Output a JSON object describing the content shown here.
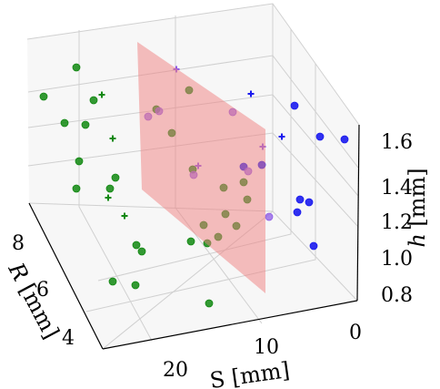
{
  "chart_data": {
    "type": "scatter3d",
    "axes": {
      "S": {
        "label": "S [mm]",
        "ticks": [
          "0",
          "10",
          "20"
        ]
      },
      "R": {
        "label_var": "R",
        "label_unit": " [mm]",
        "ticks": [
          "4",
          "6",
          "8"
        ]
      },
      "h": {
        "label_var": "h",
        "label_unit": " [mm]",
        "ticks": [
          "0.8",
          "1.0",
          "1.2",
          "1.4",
          "1.6"
        ]
      }
    },
    "grid": true,
    "colors": {
      "green": "#118811",
      "blue": "#1a1aee",
      "purple": "#8e5be6",
      "plane": "#f08080"
    },
    "green_points": [
      [
        84,
        74
      ],
      [
        48,
        106
      ],
      [
        103,
        110
      ],
      [
        71,
        135
      ],
      [
        94,
        137
      ],
      [
        172,
        120
      ],
      [
        208,
        99
      ],
      [
        189,
        146
      ],
      [
        212,
        186
      ],
      [
        87,
        177
      ],
      [
        127,
        195
      ],
      [
        121,
        207
      ],
      [
        84,
        207
      ],
      [
        246,
        206
      ],
      [
        268,
        200
      ],
      [
        272,
        219
      ],
      [
        248,
        235
      ],
      [
        224,
        247
      ],
      [
        260,
        248
      ],
      [
        240,
        260
      ],
      [
        150,
        269
      ],
      [
        156,
        276
      ],
      [
        210,
        265
      ],
      [
        228,
        267
      ],
      [
        124,
        309
      ],
      [
        149,
        313
      ],
      [
        230,
        333
      ]
    ],
    "blue_points": [
      [
        324,
        116
      ],
      [
        352,
        150
      ],
      [
        379,
        153
      ],
      [
        288,
        181
      ],
      [
        268,
        183
      ],
      [
        330,
        219
      ],
      [
        340,
        222
      ],
      [
        327,
        233
      ],
      [
        345,
        270
      ]
    ],
    "purple_points": [
      [
        163,
        128
      ],
      [
        175,
        122
      ],
      [
        256,
        123
      ],
      [
        273,
        188
      ],
      [
        213,
        192
      ],
      [
        296,
        238
      ]
    ],
    "green_plus": [
      [
        112,
        104
      ],
      [
        124,
        152
      ],
      [
        119,
        217
      ],
      [
        137,
        237
      ]
    ],
    "blue_plus": [
      [
        276,
        103
      ],
      [
        310,
        150
      ]
    ],
    "purple_plus": [
      [
        194,
        76
      ],
      [
        289,
        161
      ],
      [
        218,
        182
      ]
    ]
  }
}
